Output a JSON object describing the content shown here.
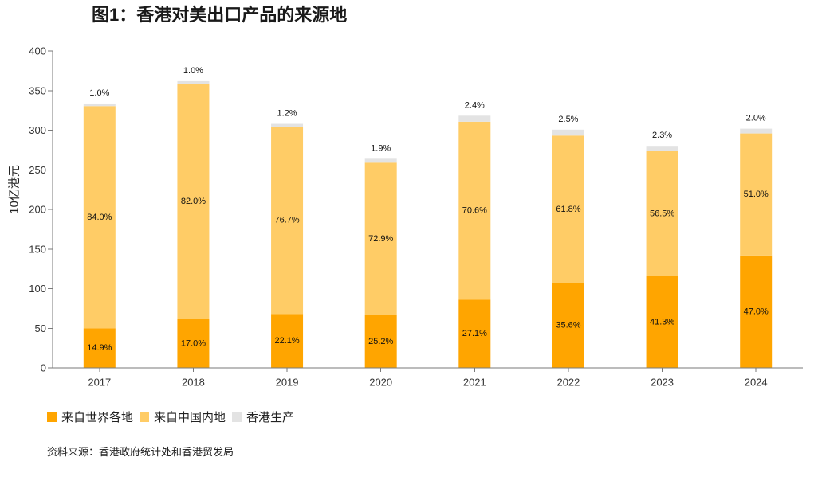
{
  "chart_data": {
    "type": "bar",
    "stacked": true,
    "title": "图1：香港对美出口产品的来源地",
    "xlabel": "",
    "ylabel": "10亿港元",
    "ylim": [
      0,
      400
    ],
    "yticks": [
      0,
      50,
      100,
      150,
      200,
      250,
      300,
      350,
      400
    ],
    "grid": false,
    "legend": "bottom-left",
    "categories": [
      "2017",
      "2018",
      "2019",
      "2020",
      "2021",
      "2022",
      "2023",
      "2024"
    ],
    "series": [
      {
        "name": "来自世界各地",
        "color": "#FFA500",
        "values": [
          49.8,
          61.5,
          68.1,
          66.5,
          86.2,
          107.2,
          115.6,
          141.9
        ],
        "labels": [
          "14.9%",
          "17.0%",
          "22.1%",
          "25.2%",
          "27.1%",
          "35.6%",
          "41.3%",
          "47.0%"
        ]
      },
      {
        "name": "来自中国内地",
        "color": "#FFCC66",
        "values": [
          280.6,
          296.8,
          236.2,
          192.5,
          224.5,
          186.0,
          158.2,
          154.0
        ],
        "labels": [
          "84.0%",
          "82.0%",
          "76.7%",
          "72.9%",
          "70.6%",
          "61.8%",
          "56.5%",
          "51.0%"
        ]
      },
      {
        "name": "香港生产",
        "color": "#E3E3E3",
        "values": [
          3.3,
          3.6,
          3.7,
          5.0,
          7.6,
          7.5,
          6.4,
          6.0
        ],
        "labels": [
          "1.0%",
          "1.0%",
          "1.2%",
          "1.9%",
          "2.4%",
          "2.5%",
          "2.3%",
          "2.0%"
        ]
      }
    ]
  },
  "source": "资料来源：香港政府统计处和香港贸发局"
}
